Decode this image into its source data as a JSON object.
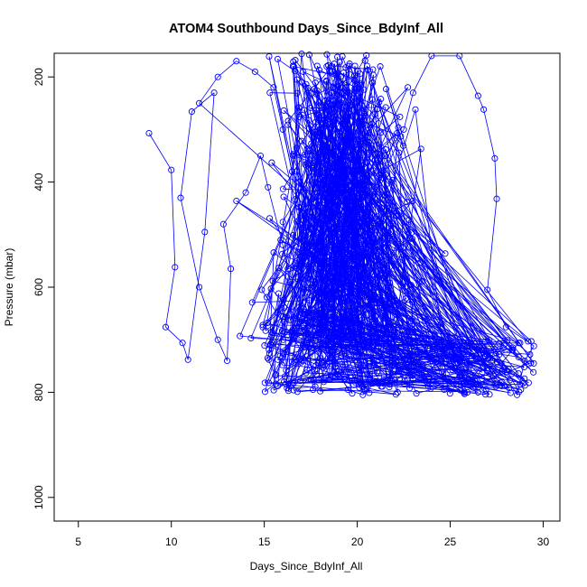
{
  "chart_data": {
    "type": "scatter",
    "title": "ATOM4 Southbound Days_Since_BdyInf_All",
    "xlabel": "Days_Since_BdyInf_All",
    "ylabel": "Pressure (mbar)",
    "xlim": [
      3.7,
      30.9
    ],
    "ylim": [
      1045,
      155
    ],
    "y_reversed": true,
    "xticks": [
      5,
      10,
      15,
      20,
      25,
      30
    ],
    "xtick_labels": [
      "5",
      "10",
      "15",
      "20",
      "25",
      "30"
    ],
    "yticks": [
      200,
      400,
      600,
      800,
      1000
    ],
    "ytick_labels": [
      "200",
      "400",
      "600",
      "800",
      "1000"
    ],
    "grid": false,
    "series_color": "#0000ff",
    "marker": "open-circle",
    "x_range_of_points": [
      8.8,
      29.7
    ],
    "y_range_of_points": [
      155,
      805
    ],
    "point_count": 900,
    "series": [
      {
        "values": [
          [
            8.8,
            307
          ],
          [
            10.0,
            377
          ],
          [
            10.2,
            562
          ],
          [
            9.7,
            676
          ],
          [
            10.6,
            706
          ],
          [
            10.9,
            738
          ],
          [
            11.8,
            495
          ],
          [
            12.3,
            230
          ],
          [
            11.1,
            266
          ],
          [
            10.5,
            430
          ],
          [
            11.5,
            600
          ],
          [
            12.5,
            700
          ],
          [
            13.0,
            740
          ],
          [
            13.2,
            565
          ],
          [
            12.8,
            480
          ],
          [
            14.0,
            420
          ],
          [
            14.8,
            350
          ],
          [
            15.2,
            410
          ],
          [
            16.0,
            520
          ],
          [
            16.4,
            590
          ],
          [
            17.0,
            640
          ],
          [
            17.5,
            700
          ],
          [
            18.0,
            735
          ],
          [
            18.2,
            780
          ],
          [
            19.0,
            760
          ],
          [
            19.5,
            795
          ],
          [
            20.3,
            805
          ],
          [
            21.0,
            780
          ],
          [
            22.0,
            760
          ],
          [
            23.5,
            750
          ],
          [
            24.5,
            740
          ],
          [
            25.5,
            770
          ],
          [
            26.5,
            790
          ],
          [
            27.8,
            760
          ],
          [
            28.6,
            805
          ],
          [
            29.0,
            740
          ],
          [
            29.5,
            712
          ],
          [
            28.0,
            676
          ],
          [
            27.0,
            605
          ],
          [
            27.5,
            432
          ],
          [
            27.4,
            355
          ],
          [
            26.8,
            262
          ],
          [
            26.5,
            236
          ],
          [
            25.5,
            160
          ],
          [
            24.0,
            160
          ],
          [
            23.0,
            230
          ],
          [
            22.5,
            300
          ],
          [
            21.5,
            350
          ],
          [
            20.5,
            400
          ],
          [
            19.5,
            470
          ],
          [
            18.5,
            520
          ],
          [
            18.0,
            560
          ],
          [
            17.5,
            440
          ],
          [
            16.5,
            380
          ],
          [
            16.0,
            300
          ],
          [
            15.5,
            220
          ],
          [
            14.5,
            190
          ],
          [
            13.5,
            170
          ],
          [
            12.5,
            200
          ],
          [
            11.5,
            250
          ]
        ]
      }
    ]
  }
}
